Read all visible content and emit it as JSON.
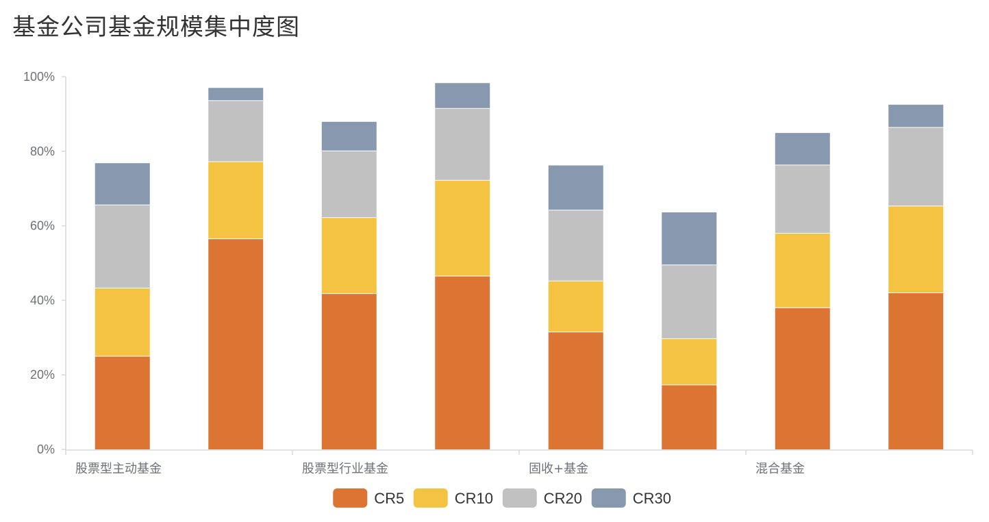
{
  "title": "基金公司基金规模集中度图",
  "chart_data": {
    "type": "bar",
    "stacked": true,
    "title": "基金公司基金规模集中度图",
    "categories": [
      "股票型主动基金",
      "",
      "股票型行业基金",
      "",
      "固收+基金",
      "",
      "混合基金",
      ""
    ],
    "y_ticks": [
      "0%",
      "20%",
      "40%",
      "60%",
      "80%",
      "100%"
    ],
    "ylim": [
      0,
      100
    ],
    "grid": false,
    "legend_position": "bottom",
    "series": [
      {
        "name": "CR5",
        "color": "#dc7533",
        "values": [
          25.0,
          56.5,
          41.8,
          46.5,
          31.5,
          17.3,
          38.0,
          42.0
        ]
      },
      {
        "name": "CR10",
        "color": "#f5c342",
        "values": [
          18.3,
          20.7,
          20.4,
          25.7,
          13.7,
          12.4,
          20.0,
          23.3
        ]
      },
      {
        "name": "CR20",
        "color": "#c1c1c1",
        "values": [
          22.3,
          16.4,
          17.9,
          19.3,
          19.0,
          19.8,
          18.3,
          21.1
        ]
      },
      {
        "name": "CR30",
        "color": "#8898ae",
        "values": [
          11.2,
          3.4,
          7.8,
          6.8,
          12.0,
          14.1,
          8.6,
          6.1
        ]
      }
    ]
  }
}
